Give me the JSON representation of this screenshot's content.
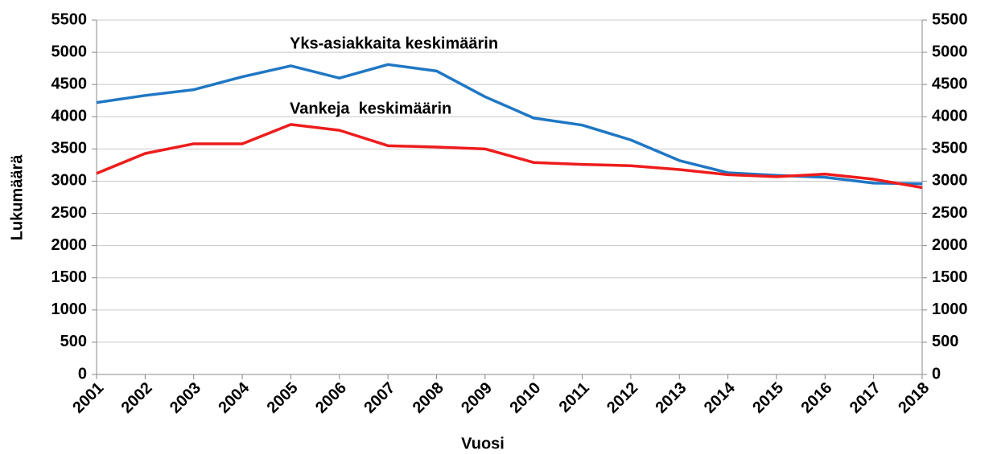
{
  "chart_data": {
    "type": "line",
    "x_label": "Vuosi",
    "y_label": "Lukumäärä",
    "categories": [
      "2001",
      "2002",
      "2003",
      "2004",
      "2005",
      "2006",
      "2007",
      "2008",
      "2009",
      "2010",
      "2011",
      "2012",
      "2013",
      "2014",
      "2015",
      "2016",
      "2017",
      "2018"
    ],
    "series": [
      {
        "name": "Yks-asiakkaita keskimäärin",
        "color": "#1f77c4",
        "values": [
          4220,
          4330,
          4420,
          4620,
          4790,
          4600,
          4810,
          4710,
          4310,
          3980,
          3870,
          3640,
          3320,
          3130,
          3090,
          3060,
          2970,
          2960
        ]
      },
      {
        "name": "Vankeja  keskimäärin",
        "color": "#ee1c1c",
        "values": [
          3120,
          3430,
          3580,
          3580,
          3880,
          3790,
          3550,
          3530,
          3500,
          3290,
          3260,
          3240,
          3180,
          3100,
          3070,
          3110,
          3030,
          2900
        ]
      }
    ],
    "ylim": [
      0,
      5500
    ],
    "yticks": [
      0,
      500,
      1000,
      1500,
      2000,
      2500,
      3000,
      3500,
      4000,
      4500,
      5000,
      5500
    ],
    "y2lim": [
      0,
      5500
    ],
    "y2ticks": [
      0,
      500,
      1000,
      1500,
      2000,
      2500,
      3000,
      3500,
      4000,
      4500,
      5000,
      5500
    ],
    "grid": true
  }
}
